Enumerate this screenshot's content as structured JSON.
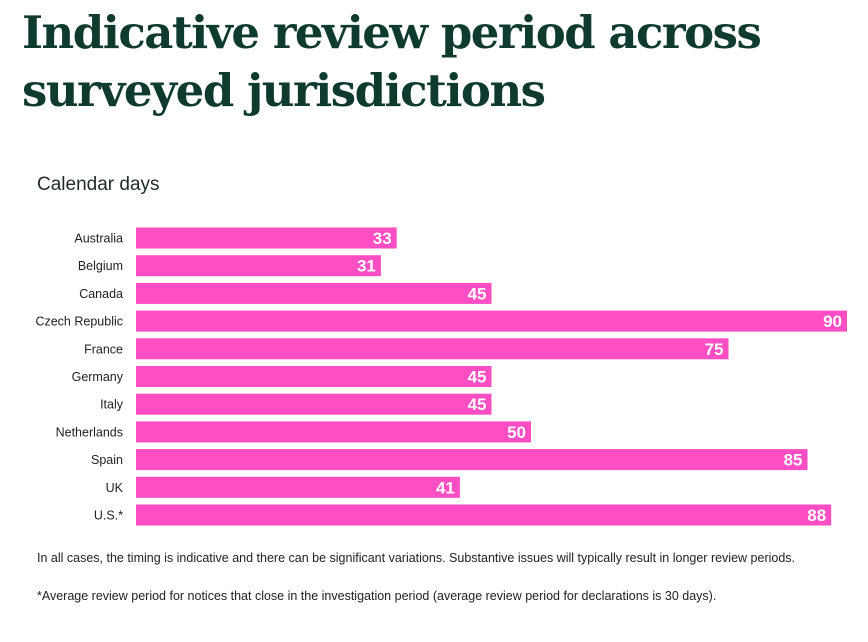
{
  "header": {
    "title": "Indicative review period across surveyed jurisdictions",
    "unit_label": "Calendar days"
  },
  "notes": {
    "caveat": "In all cases, the timing is indicative and there can be significant variations. Substantive issues will typically result in longer review periods.",
    "footnote": "*Average review period for notices that close in the investigation period (average review period for declarations is 30 days)."
  },
  "colors": {
    "bar": "#ff4dc4",
    "title": "#0e3a2f"
  },
  "chart_data": {
    "type": "bar",
    "orientation": "horizontal",
    "title": "Indicative review period across surveyed jurisdictions",
    "xlabel": "Calendar days",
    "ylabel": "",
    "xlim": [
      0,
      90
    ],
    "grid": false,
    "categories": [
      "Australia",
      "Belgium",
      "Canada",
      "Czech Republic",
      "France",
      "Germany",
      "Italy",
      "Netherlands",
      "Spain",
      "UK",
      "U.S.*"
    ],
    "values": [
      33,
      31,
      45,
      90,
      75,
      45,
      45,
      50,
      85,
      41,
      88
    ],
    "data_labels": [
      "33",
      "31",
      "45",
      "90",
      "75",
      "45",
      "45",
      "50",
      "85",
      "41",
      "88"
    ]
  }
}
